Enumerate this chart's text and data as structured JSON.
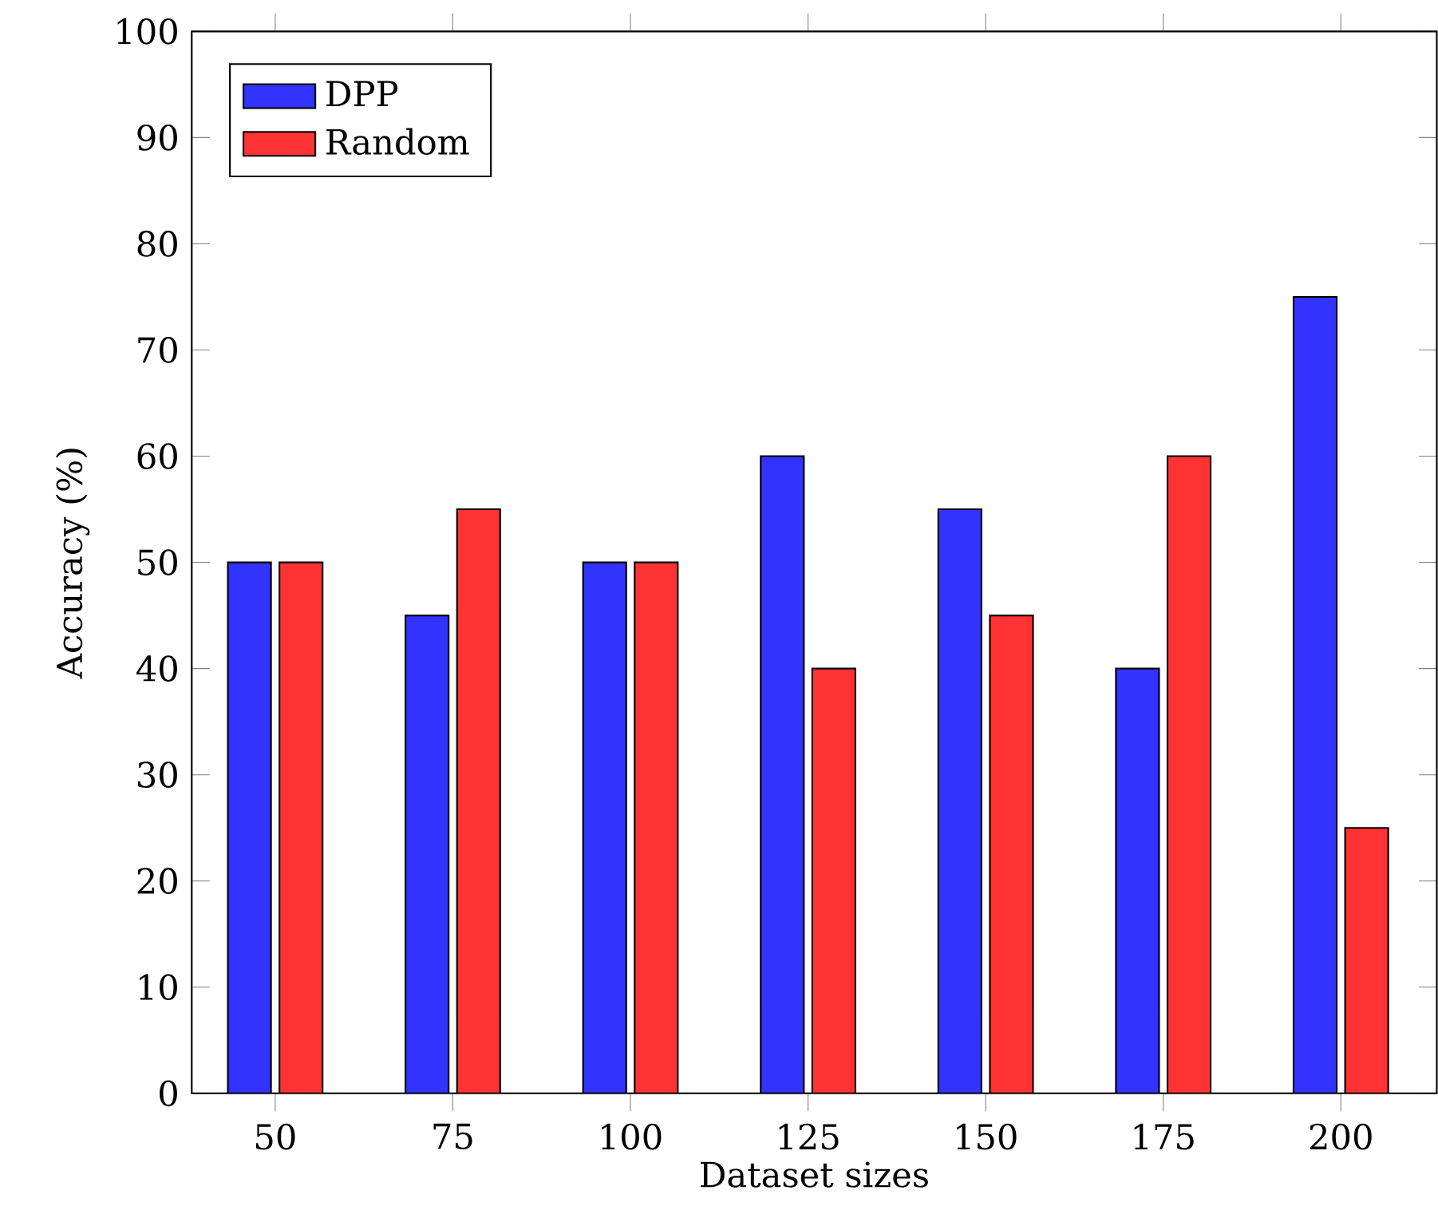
{
  "chart_data": {
    "type": "bar",
    "xlabel": "Dataset sizes",
    "ylabel": "Accuracy (%)",
    "categories": [
      "50",
      "75",
      "100",
      "125",
      "150",
      "175",
      "200"
    ],
    "series": [
      {
        "name": "DPP",
        "color": "#3333ff",
        "values": [
          50,
          45,
          50,
          60,
          55,
          40,
          75
        ]
      },
      {
        "name": "Random",
        "color": "#ff3333",
        "values": [
          50,
          55,
          50,
          40,
          45,
          60,
          25
        ]
      }
    ],
    "ylim": [
      0,
      100
    ],
    "yticks": [
      0,
      10,
      20,
      30,
      40,
      50,
      60,
      70,
      80,
      90,
      100
    ],
    "legend": "top left"
  }
}
